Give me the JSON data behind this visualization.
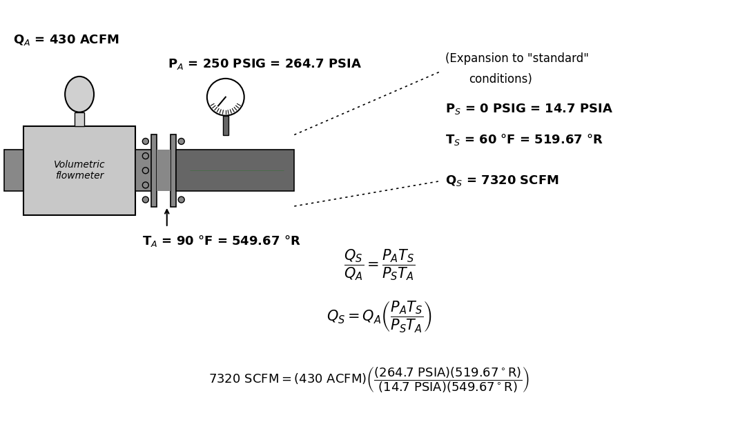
{
  "bg_color": "#ffffff",
  "fig_width": 10.56,
  "fig_height": 6.12,
  "dpi": 100,
  "label_QA": "Q$_A$ = 430 ACFM",
  "label_PA": "P$_A$ = 250 PSIG = 264.7 PSIA",
  "label_TA": "T$_A$ = 90 °F = 549.67 °R",
  "label_expansion_title": "(Expansion to \"standard\"",
  "label_expansion_title2": "conditions)",
  "label_PS": "P$_S$ = 0 PSIG = 14.7 PSIA",
  "label_TS": "T$_S$ = 60 °F = 519.67 °R",
  "label_QS": "Q$_S$ = 7320 SCFM",
  "label_flowmeter": "Volumetric\nflowmeter",
  "text_color": "#000000",
  "gray_dark": "#666666",
  "gray_medium": "#888888",
  "gray_light": "#c8c8c8",
  "gray_lighter": "#d0d0d0",
  "gray_pipe": "#888888",
  "green_arrow": "#007700",
  "font_size_main": 13,
  "font_size_small": 11,
  "font_size_eq": 14
}
